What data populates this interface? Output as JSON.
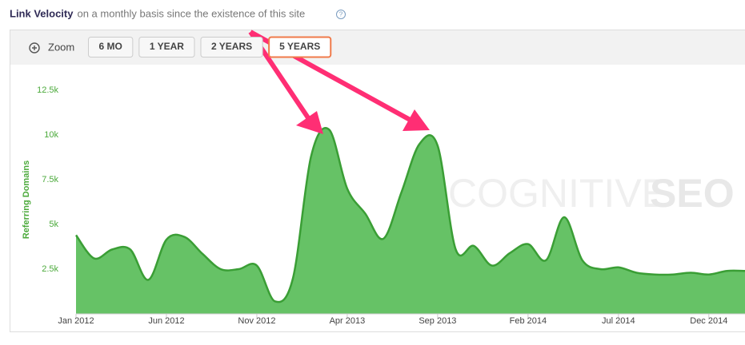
{
  "header": {
    "title": "Link Velocity",
    "subtitle": "on a monthly basis since the existence of this site",
    "help": "?"
  },
  "toolbar": {
    "zoom_label": "Zoom",
    "buttons": [
      "6 MO",
      "1 YEAR",
      "2 YEARS",
      "5 YEARS"
    ],
    "selected": 3
  },
  "watermark": [
    "COGNITIVE",
    "SEO"
  ],
  "chart_data": {
    "type": "area",
    "y_label": "Referring Domains",
    "categories": [
      "Jan 2012",
      null,
      null,
      null,
      null,
      "Jun 2012",
      null,
      null,
      null,
      null,
      "Nov 2012",
      null,
      null,
      null,
      null,
      "Apr 2013",
      null,
      null,
      null,
      null,
      "Sep 2013",
      null,
      null,
      null,
      null,
      "Feb 2014",
      null,
      null,
      null,
      null,
      "Jul 2014",
      null,
      null,
      null,
      null,
      "Dec 2014",
      null,
      null
    ],
    "series": [
      {
        "color": "#66c266",
        "line_color": "#3a9e35",
        "values": [
          4400,
          3100,
          3600,
          3600,
          1900,
          4150,
          4300,
          3350,
          2500,
          2500,
          2700,
          700,
          2000,
          8800,
          10300,
          7000,
          5600,
          4200,
          6800,
          9500,
          9400,
          3600,
          3800,
          2700,
          3400,
          3900,
          3000,
          5400,
          3000,
          2500,
          2600,
          2300,
          2200,
          2200,
          2300,
          2200,
          2400,
          2400
        ]
      }
    ],
    "ylim": [
      0,
      13750
    ],
    "yticks": [
      {
        "value": 2500,
        "label": "2.5k"
      },
      {
        "value": 5000,
        "label": "5k"
      },
      {
        "value": 7500,
        "label": "7.5k"
      },
      {
        "value": 10000,
        "label": "10k"
      },
      {
        "value": 12500,
        "label": "12.5k"
      }
    ],
    "grid": false
  }
}
